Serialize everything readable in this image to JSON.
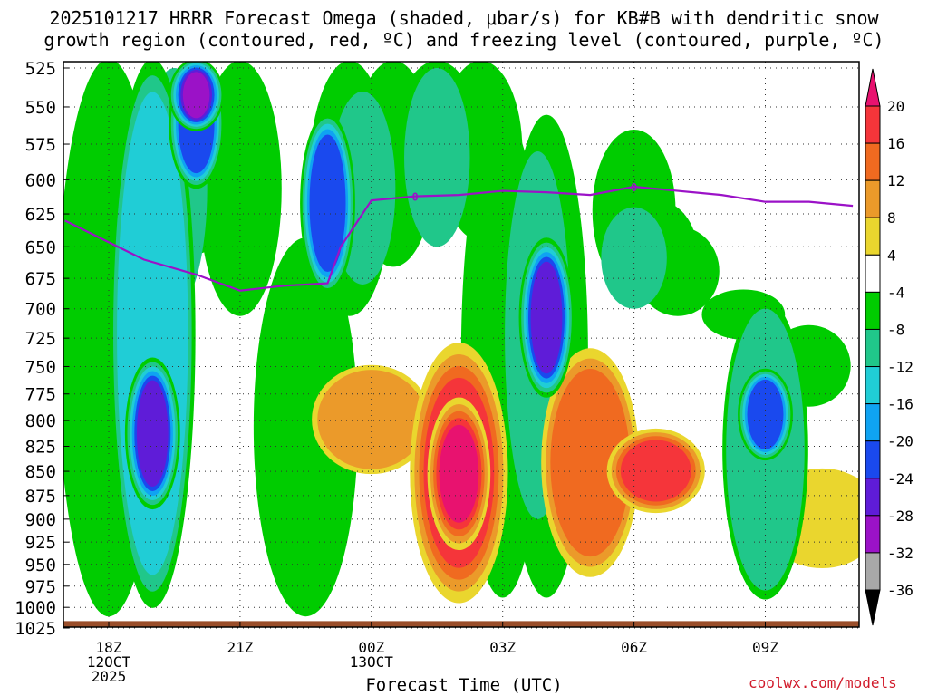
{
  "title_line1": "2025101217 HRRR Forecast Omega (shaded, μbar/s) for KB#B with dendritic snow",
  "title_line2": "growth region (contoured, red, ºC) and freezing level (contoured, purple, ºC)",
  "xlabel": "Forecast Time (UTC)",
  "credit": "coolwx.com/models",
  "chart_data": {
    "type": "heatmap",
    "title": "2025101217 HRRR Forecast Omega (shaded, μbar/s) for KB#B with dendritic snow growth region (contoured, red, ºC) and freezing level (contoured, purple, ºC)",
    "xlabel": "Forecast Time (UTC)",
    "ylabel": "",
    "x_ticks": [
      {
        "hour": 18,
        "lines": [
          "18Z",
          "12OCT",
          "2025"
        ]
      },
      {
        "hour": 21,
        "lines": [
          "21Z"
        ]
      },
      {
        "hour": 24,
        "lines": [
          "00Z",
          "13OCT"
        ]
      },
      {
        "hour": 27,
        "lines": [
          "03Z"
        ]
      },
      {
        "hour": 30,
        "lines": [
          "06Z"
        ]
      },
      {
        "hour": 33,
        "lines": [
          "09Z"
        ]
      }
    ],
    "xlim": [
      17,
      35
    ],
    "y_ticks": [
      525,
      550,
      575,
      600,
      625,
      650,
      675,
      700,
      725,
      750,
      775,
      800,
      825,
      850,
      875,
      900,
      925,
      950,
      975,
      1000,
      1025
    ],
    "ylim": [
      1025,
      520
    ],
    "y_scale": "log-pressure",
    "grid": true,
    "colorbar": {
      "labels": [
        "20",
        "16",
        "12",
        "8",
        "4",
        "-4",
        "-8",
        "-12",
        "-16",
        "-20",
        "-24",
        "-28",
        "-32",
        "-36"
      ],
      "colors": [
        "#e8126f",
        "#f5353a",
        "#f06a20",
        "#eb9a2a",
        "#ead62e",
        "#ffffff",
        "#00cc00",
        "#20c78a",
        "#20cdd6",
        "#0fa3f2",
        "#1a49ee",
        "#5f1cd8",
        "#9b12c7",
        "#a8a8a8",
        "#000000"
      ]
    },
    "omega_cells": [
      {
        "hour": 18.0,
        "p_top": 525,
        "p_bot": 1000,
        "level": "-8"
      },
      {
        "hour": 19.0,
        "p_top": 525,
        "p_bot": 990,
        "level": "-16"
      },
      {
        "hour": 19.0,
        "p_top": 750,
        "p_bot": 880,
        "level": "-28"
      },
      {
        "hour": 20.0,
        "p_top": 525,
        "p_bot": 560,
        "level": "-32"
      },
      {
        "hour": 20.0,
        "p_top": 525,
        "p_bot": 600,
        "level": "-24"
      },
      {
        "hour": 22.5,
        "p_top": 650,
        "p_bot": 1000,
        "level": "-8"
      },
      {
        "hour": 23.0,
        "p_top": 560,
        "p_bot": 680,
        "level": "-24"
      },
      {
        "hour": 24.0,
        "p_top": 760,
        "p_bot": 840,
        "level": "8"
      },
      {
        "hour": 26.0,
        "p_top": 740,
        "p_bot": 980,
        "level": "16"
      },
      {
        "hour": 26.0,
        "p_top": 790,
        "p_bot": 920,
        "level": "20"
      },
      {
        "hour": 28.0,
        "p_top": 650,
        "p_bot": 770,
        "level": "-28"
      },
      {
        "hour": 29.0,
        "p_top": 745,
        "p_bot": 950,
        "level": "12"
      },
      {
        "hour": 30.5,
        "p_top": 820,
        "p_bot": 880,
        "level": "16"
      },
      {
        "hour": 33.0,
        "p_top": 700,
        "p_bot": 980,
        "level": "-12"
      },
      {
        "hour": 33.0,
        "p_top": 760,
        "p_bot": 830,
        "level": "-24"
      },
      {
        "hour": 34.3,
        "p_top": 860,
        "p_bot": 940,
        "level": "4"
      }
    ],
    "freezing_level": {
      "contour_label": "0",
      "points": [
        [
          17.0,
          630
        ],
        [
          18.8,
          660
        ],
        [
          20.0,
          672
        ],
        [
          21.0,
          685
        ],
        [
          22.0,
          681
        ],
        [
          23.0,
          679
        ],
        [
          23.3,
          650
        ],
        [
          24.0,
          615
        ],
        [
          25.0,
          612
        ],
        [
          26.0,
          611
        ],
        [
          27.0,
          608
        ],
        [
          28.0,
          609
        ],
        [
          29.0,
          611
        ],
        [
          30.0,
          605
        ],
        [
          31.0,
          608
        ],
        [
          32.0,
          611
        ],
        [
          33.0,
          616
        ],
        [
          34.0,
          616
        ],
        [
          35.0,
          619
        ]
      ]
    },
    "surface_band_pressure": 1021
  }
}
